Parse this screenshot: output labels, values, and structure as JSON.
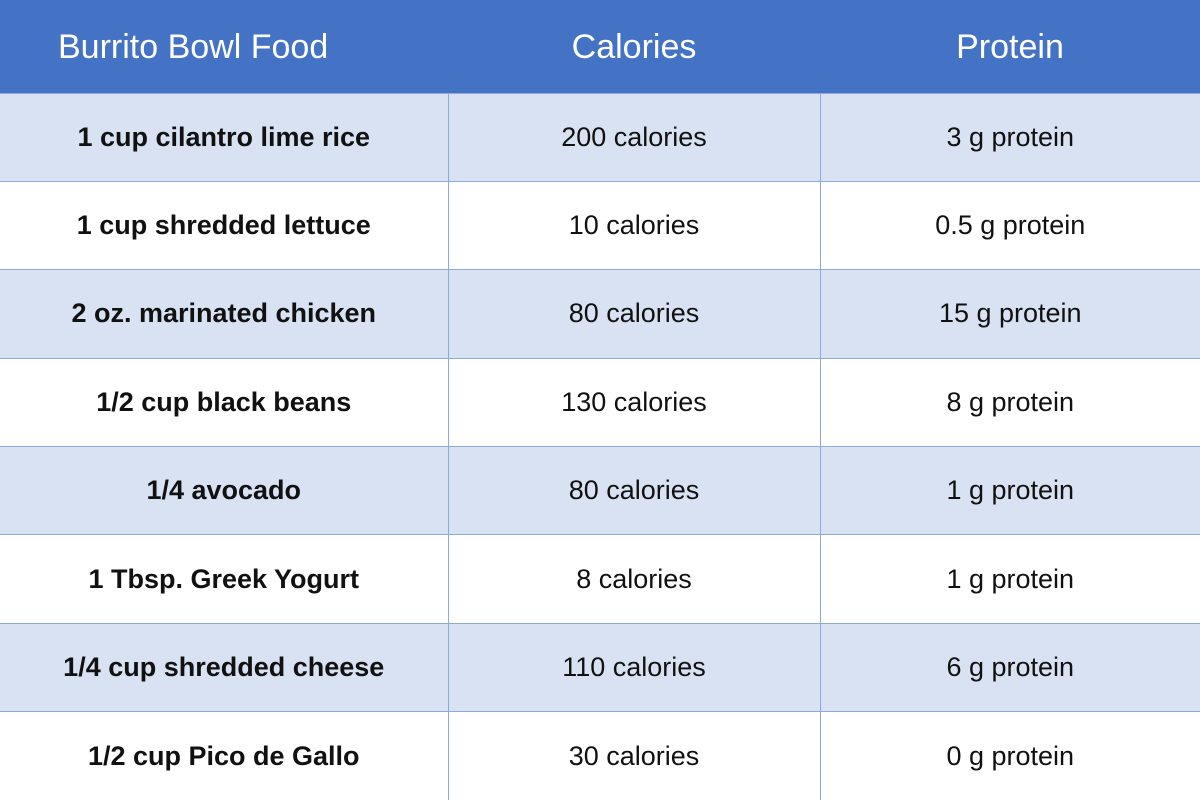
{
  "table": {
    "headers": [
      "Burrito Bowl Food",
      "Calories",
      "Protein"
    ],
    "rows": [
      [
        "1 cup cilantro lime rice",
        "200 calories",
        "3 g protein"
      ],
      [
        "1 cup shredded lettuce",
        "10 calories",
        "0.5 g protein"
      ],
      [
        "2 oz. marinated chicken",
        "80 calories",
        "15 g protein"
      ],
      [
        "1/2 cup black beans",
        "130 calories",
        "8 g protein"
      ],
      [
        "1/4 avocado",
        "80 calories",
        "1 g protein"
      ],
      [
        "1 Tbsp. Greek Yogurt",
        "8 calories",
        "1 g protein"
      ],
      [
        "1/4 cup shredded cheese",
        "110 calories",
        "6 g protein"
      ],
      [
        "1/2 cup Pico de Gallo",
        "30 calories",
        "0 g protein"
      ]
    ]
  },
  "colors": {
    "header_background": "#4472c4",
    "header_text": "#ffffff",
    "shaded_row": "#d9e2f3",
    "unshaded_row": "#ffffff",
    "grid_line": "#8eaadb"
  }
}
